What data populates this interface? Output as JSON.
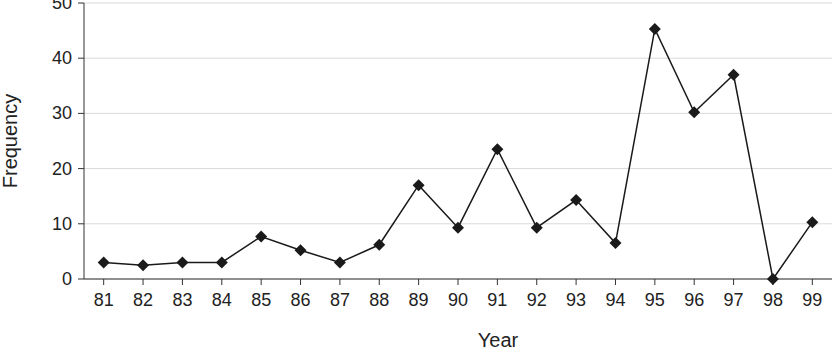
{
  "chart_data": {
    "type": "line",
    "x_label": "Year",
    "y_label": "Frequency",
    "categories": [
      "81",
      "82",
      "83",
      "84",
      "85",
      "86",
      "87",
      "88",
      "89",
      "90",
      "91",
      "92",
      "93",
      "94",
      "95",
      "96",
      "97",
      "98",
      "99"
    ],
    "values": [
      3,
      2.5,
      3,
      3,
      7.7,
      5.2,
      3,
      6.2,
      17,
      9.3,
      23.5,
      9.3,
      14.3,
      6.5,
      45.3,
      30.2,
      37,
      0,
      10.3
    ],
    "color": "#1a1a1a",
    "marker": "diamond",
    "line_style": "solid",
    "ylim": [
      0,
      50
    ],
    "yticks": [
      0,
      10,
      20,
      30,
      40,
      50
    ],
    "grid": true
  }
}
